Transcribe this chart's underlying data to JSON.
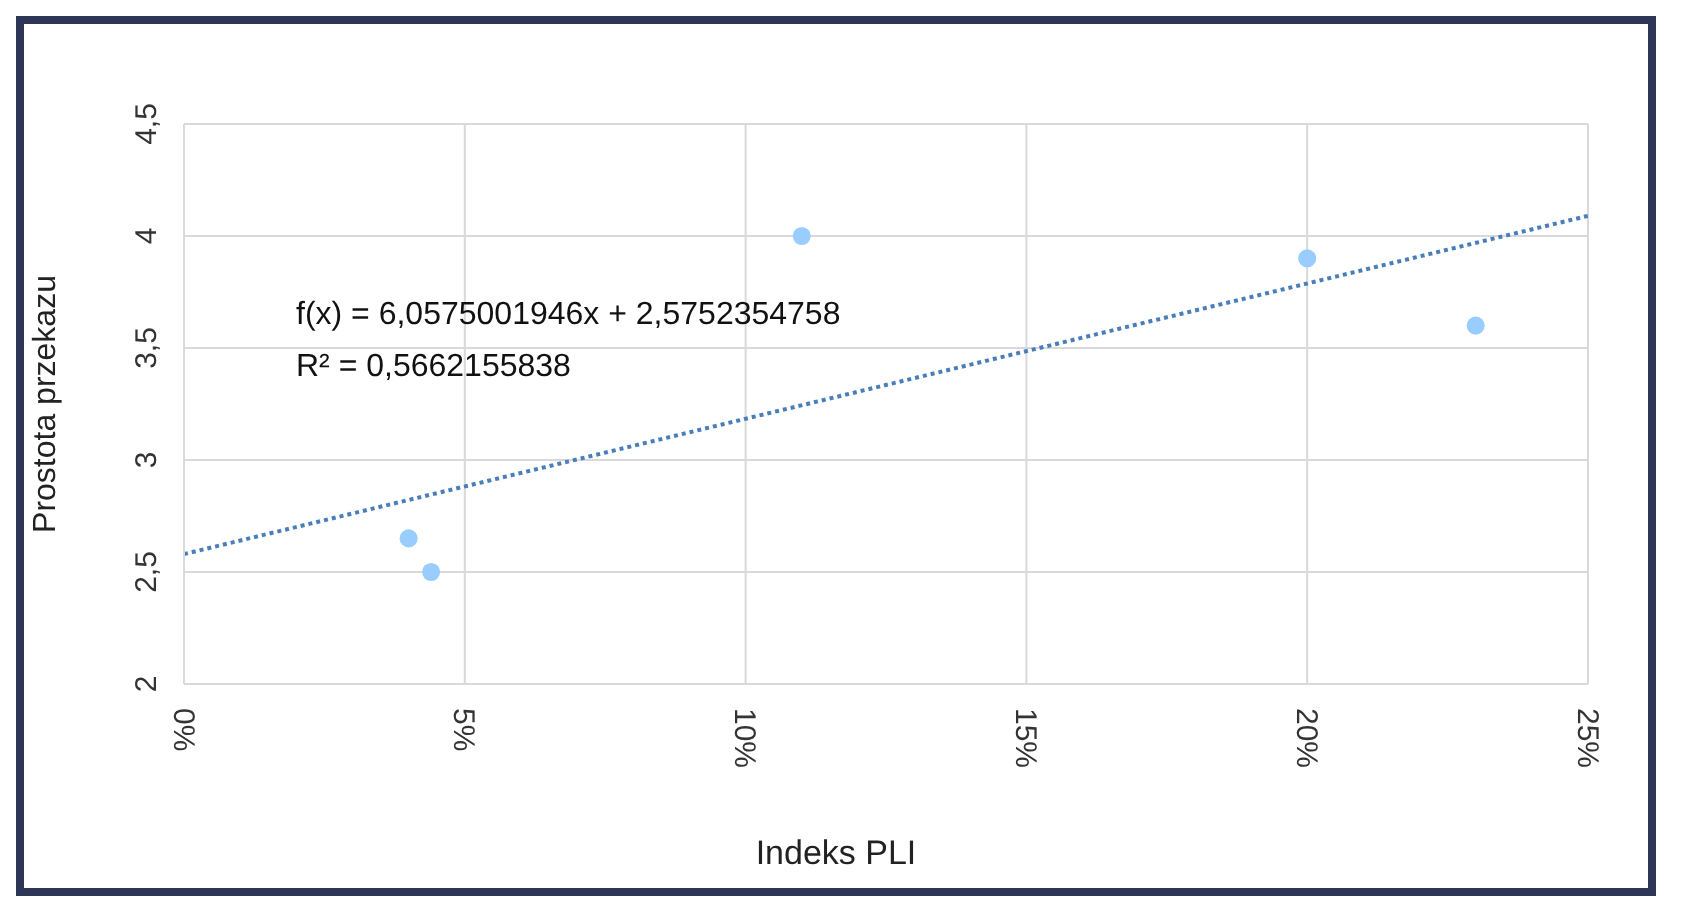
{
  "chart_data": {
    "type": "scatter",
    "xlabel": "Indeks PLI",
    "ylabel": "Prostota przekazu",
    "annotations": [
      "f(x) = 6,0575001946x + 2,5752354758",
      "R² = 0,5662155838"
    ],
    "xlim": [
      0,
      0.25
    ],
    "xticks": [
      {
        "value": 0,
        "label": "0%"
      },
      {
        "value": 0.05,
        "label": "5%"
      },
      {
        "value": 0.1,
        "label": "10%"
      },
      {
        "value": 0.15,
        "label": "15%"
      },
      {
        "value": 0.2,
        "label": "20%"
      },
      {
        "value": 0.25,
        "label": "25%"
      }
    ],
    "ylim": [
      2,
      4.5
    ],
    "yticks": [
      2,
      {
        "value": 2.5,
        "label": "2,5"
      },
      3,
      {
        "value": 3.5,
        "label": "3,5"
      },
      4,
      {
        "value": 4.5,
        "label": "4,5"
      }
    ],
    "grid": true,
    "legend": false,
    "marker": "circle",
    "series": [
      {
        "color": "#99ccff",
        "x": [
          0.04,
          0.044,
          0.11,
          0.2,
          0.23
        ],
        "values": [
          2.65,
          2.5,
          4,
          3.9,
          3.6
        ]
      },
      {
        "type": "line",
        "color": "#4a7ebb",
        "line_style": "dotted",
        "marker": "none",
        "x": [
          0,
          0.25
        ],
        "values": [
          2.58,
          4.09
        ]
      }
    ]
  }
}
